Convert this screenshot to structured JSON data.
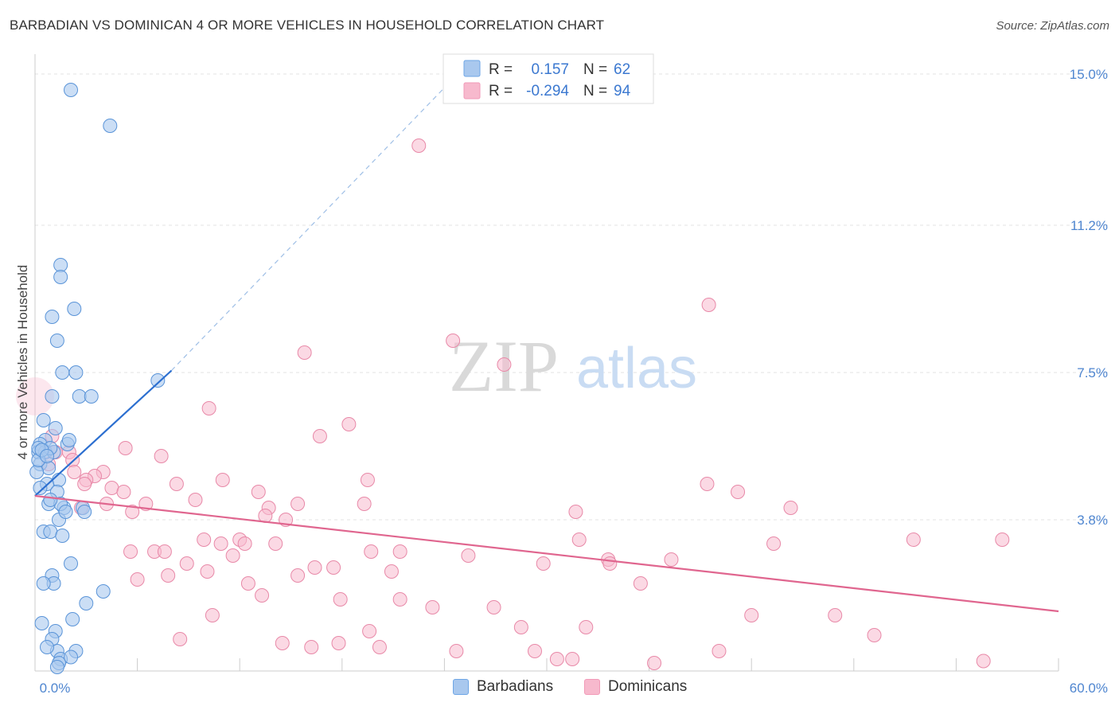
{
  "title": "BARBADIAN VS DOMINICAN 4 OR MORE VEHICLES IN HOUSEHOLD CORRELATION CHART",
  "source": "Source: ZipAtlas.com",
  "watermark": {
    "zip": "ZIP",
    "atlas": "atlas"
  },
  "legend": {
    "r_label": "R =",
    "n_label": "N =",
    "rows": [
      {
        "r": "0.157",
        "n": "62",
        "color": "#6ea6e6"
      },
      {
        "r": "-0.294",
        "n": "94",
        "color": "#f29ab8"
      }
    ]
  },
  "bottom_legend": {
    "barbadians": "Barbadians",
    "dominicans": "Dominicans"
  },
  "colors": {
    "blue_fill": "#a9c8ee",
    "blue_stroke": "#5a94d8",
    "blue_line": "#2c6fd0",
    "pink_fill": "#f7b9cd",
    "pink_stroke": "#e889a8",
    "pink_line": "#e0668f",
    "tick": "#4f86d0"
  },
  "chart_data": {
    "type": "scatter",
    "title": "BARBADIAN VS DOMINICAN 4 OR MORE VEHICLES IN HOUSEHOLD CORRELATION CHART",
    "xlabel": "",
    "ylabel": "4 or more Vehicles in Household",
    "xlim": [
      0,
      60
    ],
    "ylim": [
      0,
      15.3
    ],
    "x_tick_labels": [
      "0.0%",
      "60.0%"
    ],
    "y_ticks": [
      {
        "value": 3.8,
        "label": "3.8%"
      },
      {
        "value": 7.5,
        "label": "7.5%"
      },
      {
        "value": 11.2,
        "label": "11.2%"
      },
      {
        "value": 15.0,
        "label": "15.0%"
      }
    ],
    "grid": true,
    "legend_position": "top-center",
    "series": [
      {
        "name": "Barbadians",
        "r": 0.157,
        "n": 62,
        "trend": {
          "x0": 0.0,
          "y0": 4.4,
          "x1": 8.0,
          "y1": 7.55,
          "dashed_to": {
            "x": 25.0,
            "y": 15.1
          }
        },
        "points": [
          [
            2.1,
            14.6
          ],
          [
            4.4,
            13.7
          ],
          [
            1.5,
            10.2
          ],
          [
            1.5,
            9.9
          ],
          [
            2.3,
            9.1
          ],
          [
            1.0,
            8.9
          ],
          [
            1.3,
            8.3
          ],
          [
            1.6,
            7.5
          ],
          [
            2.4,
            7.5
          ],
          [
            1.0,
            6.9
          ],
          [
            2.6,
            6.9
          ],
          [
            3.3,
            6.9
          ],
          [
            7.2,
            7.3
          ],
          [
            0.5,
            6.3
          ],
          [
            1.2,
            6.1
          ],
          [
            0.6,
            5.8
          ],
          [
            1.9,
            5.7
          ],
          [
            2.0,
            5.8
          ],
          [
            0.3,
            5.7
          ],
          [
            0.2,
            5.5
          ],
          [
            0.6,
            5.5
          ],
          [
            1.1,
            5.5
          ],
          [
            0.9,
            5.6
          ],
          [
            0.3,
            5.2
          ],
          [
            0.8,
            5.1
          ],
          [
            0.1,
            5.0
          ],
          [
            0.2,
            5.3
          ],
          [
            1.4,
            4.8
          ],
          [
            0.7,
            4.7
          ],
          [
            0.3,
            4.6
          ],
          [
            1.3,
            4.5
          ],
          [
            1.7,
            4.1
          ],
          [
            2.8,
            4.1
          ],
          [
            2.9,
            4.0
          ],
          [
            0.8,
            4.2
          ],
          [
            1.4,
            3.8
          ],
          [
            0.5,
            3.5
          ],
          [
            0.9,
            3.5
          ],
          [
            1.6,
            3.4
          ],
          [
            2.1,
            2.7
          ],
          [
            1.0,
            2.4
          ],
          [
            1.1,
            2.2
          ],
          [
            0.5,
            2.2
          ],
          [
            4.0,
            2.0
          ],
          [
            3.0,
            1.7
          ],
          [
            2.2,
            1.3
          ],
          [
            0.4,
            1.2
          ],
          [
            1.2,
            1.0
          ],
          [
            1.0,
            0.8
          ],
          [
            1.3,
            0.5
          ],
          [
            2.4,
            0.5
          ],
          [
            1.5,
            0.3
          ],
          [
            1.4,
            0.2
          ],
          [
            2.1,
            0.35
          ],
          [
            1.3,
            0.1
          ],
          [
            0.7,
            0.6
          ],
          [
            0.2,
            5.6
          ],
          [
            1.5,
            4.2
          ],
          [
            0.4,
            5.55
          ],
          [
            0.7,
            5.4
          ],
          [
            1.8,
            4.0
          ],
          [
            0.9,
            4.3
          ]
        ]
      },
      {
        "name": "Dominicans",
        "r": -0.294,
        "n": 94,
        "trend": {
          "x0": 0.0,
          "y0": 4.4,
          "x1": 60.0,
          "y1": 1.5
        },
        "points": [
          [
            22.5,
            13.2
          ],
          [
            39.5,
            9.2
          ],
          [
            24.5,
            8.3
          ],
          [
            15.8,
            8.0
          ],
          [
            27.5,
            7.7
          ],
          [
            10.2,
            6.6
          ],
          [
            18.4,
            6.2
          ],
          [
            16.7,
            5.9
          ],
          [
            5.3,
            5.6
          ],
          [
            7.4,
            5.4
          ],
          [
            1.0,
            5.9
          ],
          [
            1.2,
            5.5
          ],
          [
            2.0,
            5.5
          ],
          [
            2.2,
            5.3
          ],
          [
            0.8,
            5.2
          ],
          [
            2.3,
            5.0
          ],
          [
            4.0,
            5.0
          ],
          [
            3.5,
            4.9
          ],
          [
            3.0,
            4.8
          ],
          [
            11.0,
            4.8
          ],
          [
            19.5,
            4.8
          ],
          [
            8.3,
            4.7
          ],
          [
            2.9,
            4.7
          ],
          [
            4.5,
            4.6
          ],
          [
            5.2,
            4.5
          ],
          [
            13.1,
            4.5
          ],
          [
            39.4,
            4.7
          ],
          [
            41.2,
            4.5
          ],
          [
            9.4,
            4.3
          ],
          [
            15.4,
            4.2
          ],
          [
            19.3,
            4.2
          ],
          [
            4.2,
            4.2
          ],
          [
            6.5,
            4.2
          ],
          [
            2.7,
            4.1
          ],
          [
            13.7,
            4.1
          ],
          [
            5.7,
            4.0
          ],
          [
            13.5,
            3.9
          ],
          [
            14.7,
            3.8
          ],
          [
            31.7,
            4.0
          ],
          [
            44.3,
            4.1
          ],
          [
            31.9,
            3.3
          ],
          [
            43.3,
            3.2
          ],
          [
            51.5,
            3.3
          ],
          [
            56.7,
            3.3
          ],
          [
            9.9,
            3.3
          ],
          [
            12.0,
            3.3
          ],
          [
            14.1,
            3.2
          ],
          [
            10.9,
            3.2
          ],
          [
            12.3,
            3.2
          ],
          [
            7.0,
            3.0
          ],
          [
            7.6,
            3.0
          ],
          [
            11.6,
            2.9
          ],
          [
            5.6,
            3.0
          ],
          [
            19.7,
            3.0
          ],
          [
            21.4,
            3.0
          ],
          [
            25.4,
            2.9
          ],
          [
            8.9,
            2.7
          ],
          [
            16.4,
            2.6
          ],
          [
            17.5,
            2.6
          ],
          [
            10.1,
            2.5
          ],
          [
            20.9,
            2.5
          ],
          [
            29.8,
            2.7
          ],
          [
            33.6,
            2.8
          ],
          [
            37.3,
            2.8
          ],
          [
            33.7,
            2.7
          ],
          [
            7.8,
            2.4
          ],
          [
            6.0,
            2.3
          ],
          [
            15.4,
            2.4
          ],
          [
            12.5,
            2.2
          ],
          [
            13.3,
            1.9
          ],
          [
            35.5,
            2.2
          ],
          [
            17.9,
            1.8
          ],
          [
            21.4,
            1.8
          ],
          [
            23.3,
            1.6
          ],
          [
            26.9,
            1.6
          ],
          [
            42.0,
            1.4
          ],
          [
            46.9,
            1.4
          ],
          [
            10.4,
            1.4
          ],
          [
            19.6,
            1.0
          ],
          [
            28.5,
            1.1
          ],
          [
            32.3,
            1.1
          ],
          [
            8.5,
            0.8
          ],
          [
            14.5,
            0.7
          ],
          [
            16.2,
            0.6
          ],
          [
            17.8,
            0.7
          ],
          [
            20.2,
            0.6
          ],
          [
            24.7,
            0.5
          ],
          [
            29.3,
            0.5
          ],
          [
            30.6,
            0.3
          ],
          [
            40.1,
            0.5
          ],
          [
            31.5,
            0.3
          ],
          [
            36.3,
            0.2
          ],
          [
            49.2,
            0.9
          ],
          [
            55.6,
            0.25
          ]
        ]
      }
    ]
  }
}
